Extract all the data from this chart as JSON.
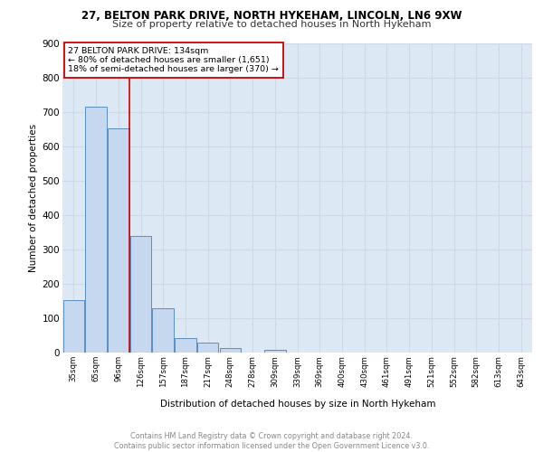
{
  "title1": "27, BELTON PARK DRIVE, NORTH HYKEHAM, LINCOLN, LN6 9XW",
  "title2": "Size of property relative to detached houses in North Hykeham",
  "xlabel": "Distribution of detached houses by size in North Hykeham",
  "ylabel": "Number of detached properties",
  "categories": [
    "35sqm",
    "65sqm",
    "96sqm",
    "126sqm",
    "157sqm",
    "187sqm",
    "217sqm",
    "248sqm",
    "278sqm",
    "309sqm",
    "339sqm",
    "369sqm",
    "400sqm",
    "430sqm",
    "461sqm",
    "491sqm",
    "521sqm",
    "552sqm",
    "582sqm",
    "613sqm",
    "643sqm"
  ],
  "values": [
    152,
    716,
    651,
    339,
    130,
    42,
    30,
    12,
    0,
    8,
    0,
    0,
    0,
    0,
    0,
    0,
    0,
    0,
    0,
    0,
    0
  ],
  "bar_color": "#c5d8f0",
  "bar_edge_color": "#5a8fc3",
  "grid_color": "#d0d8e8",
  "background_color": "#dde8f5",
  "vline_color": "#cc0000",
  "annotation_text": "27 BELTON PARK DRIVE: 134sqm\n← 80% of detached houses are smaller (1,651)\n18% of semi-detached houses are larger (370) →",
  "annotation_box_color": "#ffffff",
  "annotation_box_edge": "#cc0000",
  "footer": "Contains HM Land Registry data © Crown copyright and database right 2024.\nContains public sector information licensed under the Open Government Licence v3.0.",
  "ylim": [
    0,
    900
  ],
  "yticks": [
    0,
    100,
    200,
    300,
    400,
    500,
    600,
    700,
    800,
    900
  ]
}
